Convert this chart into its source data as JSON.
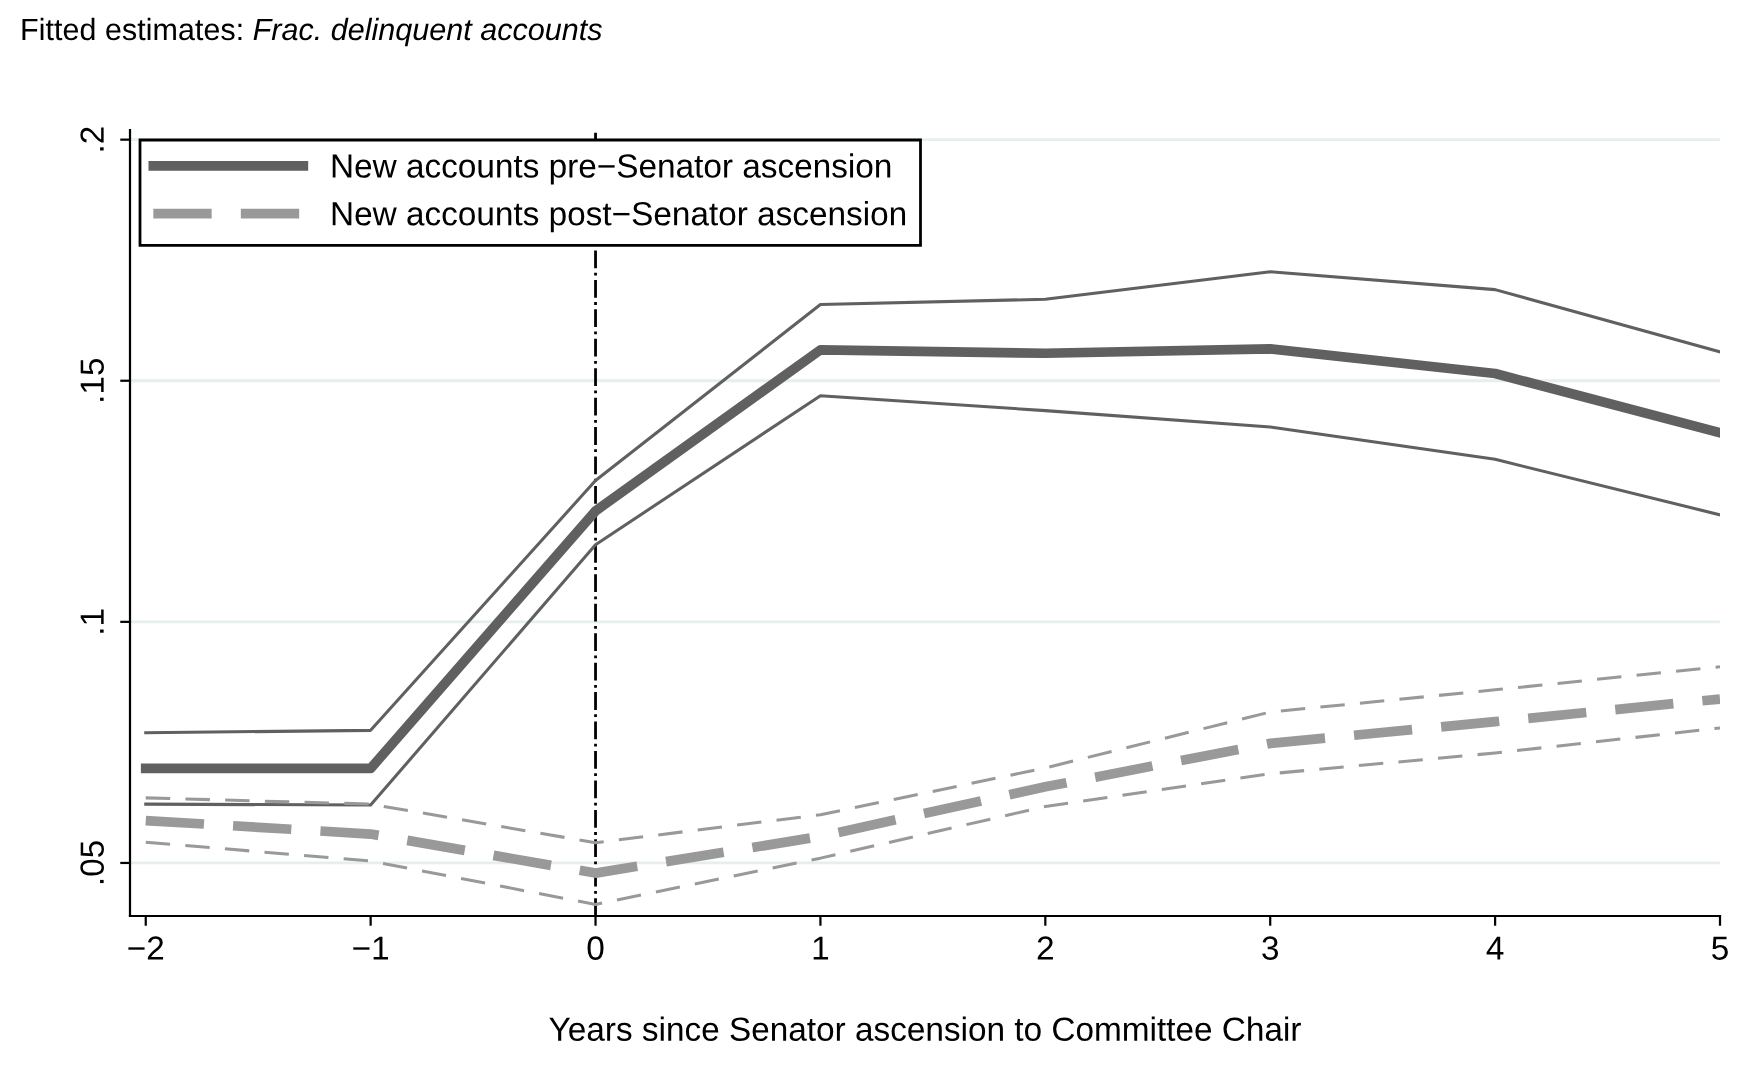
{
  "chart_data": {
    "type": "line",
    "title": "Fitted estimates:",
    "subtitle": "Frac. delinquent accounts",
    "xlabel": "Years since Senator ascension to Committee Chair",
    "x": [
      -2,
      -1,
      0,
      1,
      2,
      3,
      4,
      5
    ],
    "series": [
      {
        "name": "New accounts pre−Senator ascension",
        "color": "#606060",
        "line_style": "solid",
        "values": [
          0.0696,
          0.0696,
          0.123,
          0.1564,
          0.1557,
          0.1566,
          0.1515,
          0.1392
        ]
      },
      {
        "name": "New accounts post−Senator ascension",
        "color": "#999999",
        "line_style": "dashed",
        "values": [
          0.0588,
          0.056,
          0.0479,
          0.0555,
          0.0658,
          0.0748,
          0.0793,
          0.084
        ]
      },
      {
        "color": "#606060",
        "line_style": "solid",
        "values": [
          0.0622,
          0.062,
          0.116,
          0.1469,
          0.1438,
          0.1404,
          0.1337,
          0.1222
        ]
      },
      {
        "color": "#606060",
        "line_style": "solid",
        "values": [
          0.077,
          0.0775,
          0.1293,
          0.1658,
          0.1669,
          0.1726,
          0.1689,
          0.156
        ]
      },
      {
        "color": "#999999",
        "line_style": "dashed",
        "values": [
          0.0543,
          0.0504,
          0.0414,
          0.051,
          0.0617,
          0.0685,
          0.0728,
          0.078
        ]
      },
      {
        "color": "#999999",
        "line_style": "dashed",
        "values": [
          0.0635,
          0.0622,
          0.0542,
          0.06,
          0.0697,
          0.0813,
          0.0859,
          0.0907
        ]
      }
    ],
    "ref_lines": [
      {
        "axis": "x",
        "value": 0,
        "line_style": "dashdot",
        "color": "#000000"
      }
    ],
    "xlim": [
      -2.07,
      5
    ],
    "ylim": [
      0.039,
      0.202
    ],
    "xticks": [
      {
        "value": -2,
        "label": "−2"
      },
      {
        "value": -1,
        "label": "−1"
      },
      0,
      1,
      2,
      3,
      4,
      5
    ],
    "yticks": [
      {
        "value": 0.05,
        "label": ".05"
      },
      {
        "value": 0.1,
        "label": ".1"
      },
      {
        "value": 0.15,
        "label": ".15"
      },
      {
        "value": 0.2,
        "label": ".2"
      }
    ],
    "grid": "y",
    "legend": "top left"
  }
}
